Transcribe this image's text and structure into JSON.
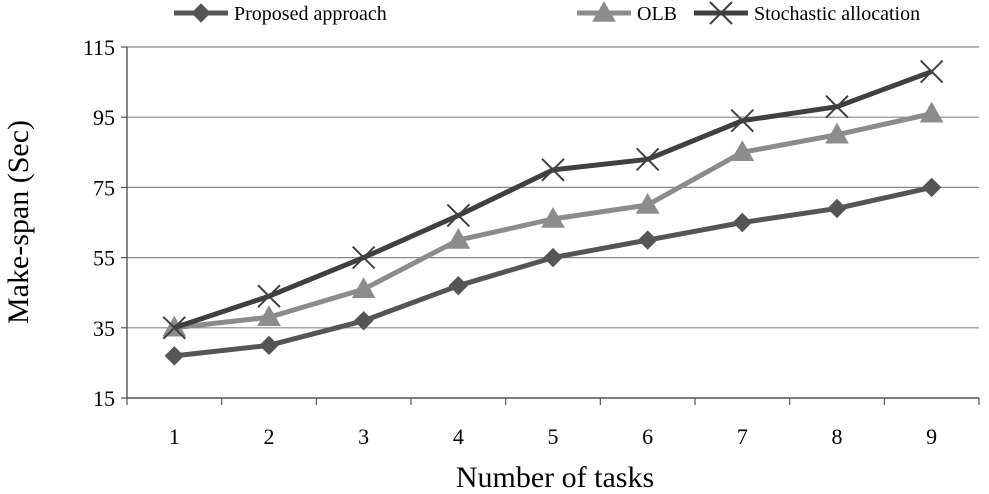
{
  "chart_data": {
    "type": "line",
    "title": "",
    "xlabel": "Number of tasks",
    "ylabel": "Make-span (Sec)",
    "categories": [
      "1",
      "2",
      "3",
      "4",
      "5",
      "6",
      "7",
      "8",
      "9"
    ],
    "ylim": [
      15,
      115
    ],
    "yticks": [
      "15",
      "35",
      "55",
      "75",
      "95",
      "115"
    ],
    "grid": true,
    "legend": "top",
    "series": [
      {
        "name": "Proposed approach",
        "color": "#555555",
        "marker": "diamond",
        "values": [
          27,
          30,
          37,
          47,
          55,
          60,
          65,
          69,
          75
        ]
      },
      {
        "name": "OLB",
        "color": "#8c8c8c",
        "marker": "triangle",
        "values": [
          35,
          38,
          46,
          60,
          66,
          70,
          85,
          90,
          96
        ]
      },
      {
        "name": "Stochastic allocation",
        "color": "#404040",
        "marker": "x",
        "values": [
          35,
          44,
          55,
          67,
          80,
          83,
          94,
          98,
          108
        ]
      }
    ]
  }
}
